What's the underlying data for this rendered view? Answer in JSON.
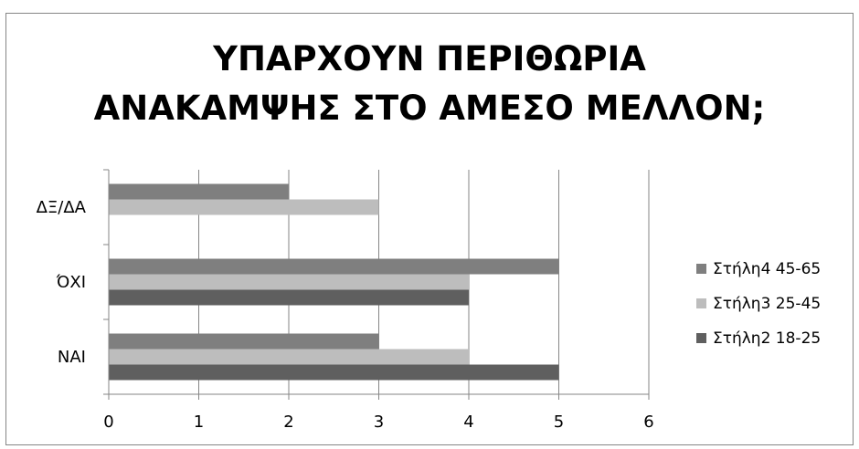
{
  "chart_data": {
    "type": "bar",
    "orientation": "horizontal",
    "title": "ΥΠΑΡΧΟΥΝ ΠΕΡΙΘΩΡΙΑ\nΑΝΑΚΑΜΨΗΣ ΣΤΟ ΑΜΕΣΟ ΜΕΛΛΟΝ;",
    "categories": [
      "ΝΑΙ",
      "ΌΧΙ",
      "ΔΞ/ΔΑ"
    ],
    "series": [
      {
        "name": "Στήλη2 18-25",
        "values": [
          5,
          4,
          null
        ],
        "color": "#5f5f5f"
      },
      {
        "name": "Στήλη3 25-45",
        "values": [
          4,
          4,
          3
        ],
        "color": "#bdbdbd"
      },
      {
        "name": "Στήλη4 45-65",
        "values": [
          3,
          5,
          2
        ],
        "color": "#7f7f7f"
      }
    ],
    "xlim": [
      0,
      6
    ],
    "xticks": [
      "0",
      "1",
      "2",
      "3",
      "4",
      "5",
      "6"
    ],
    "grid": true,
    "legend_position": "right",
    "legend_order": [
      "Στήλη4 45-65",
      "Στήλη3 25-45",
      "Στήλη2 18-25"
    ]
  }
}
